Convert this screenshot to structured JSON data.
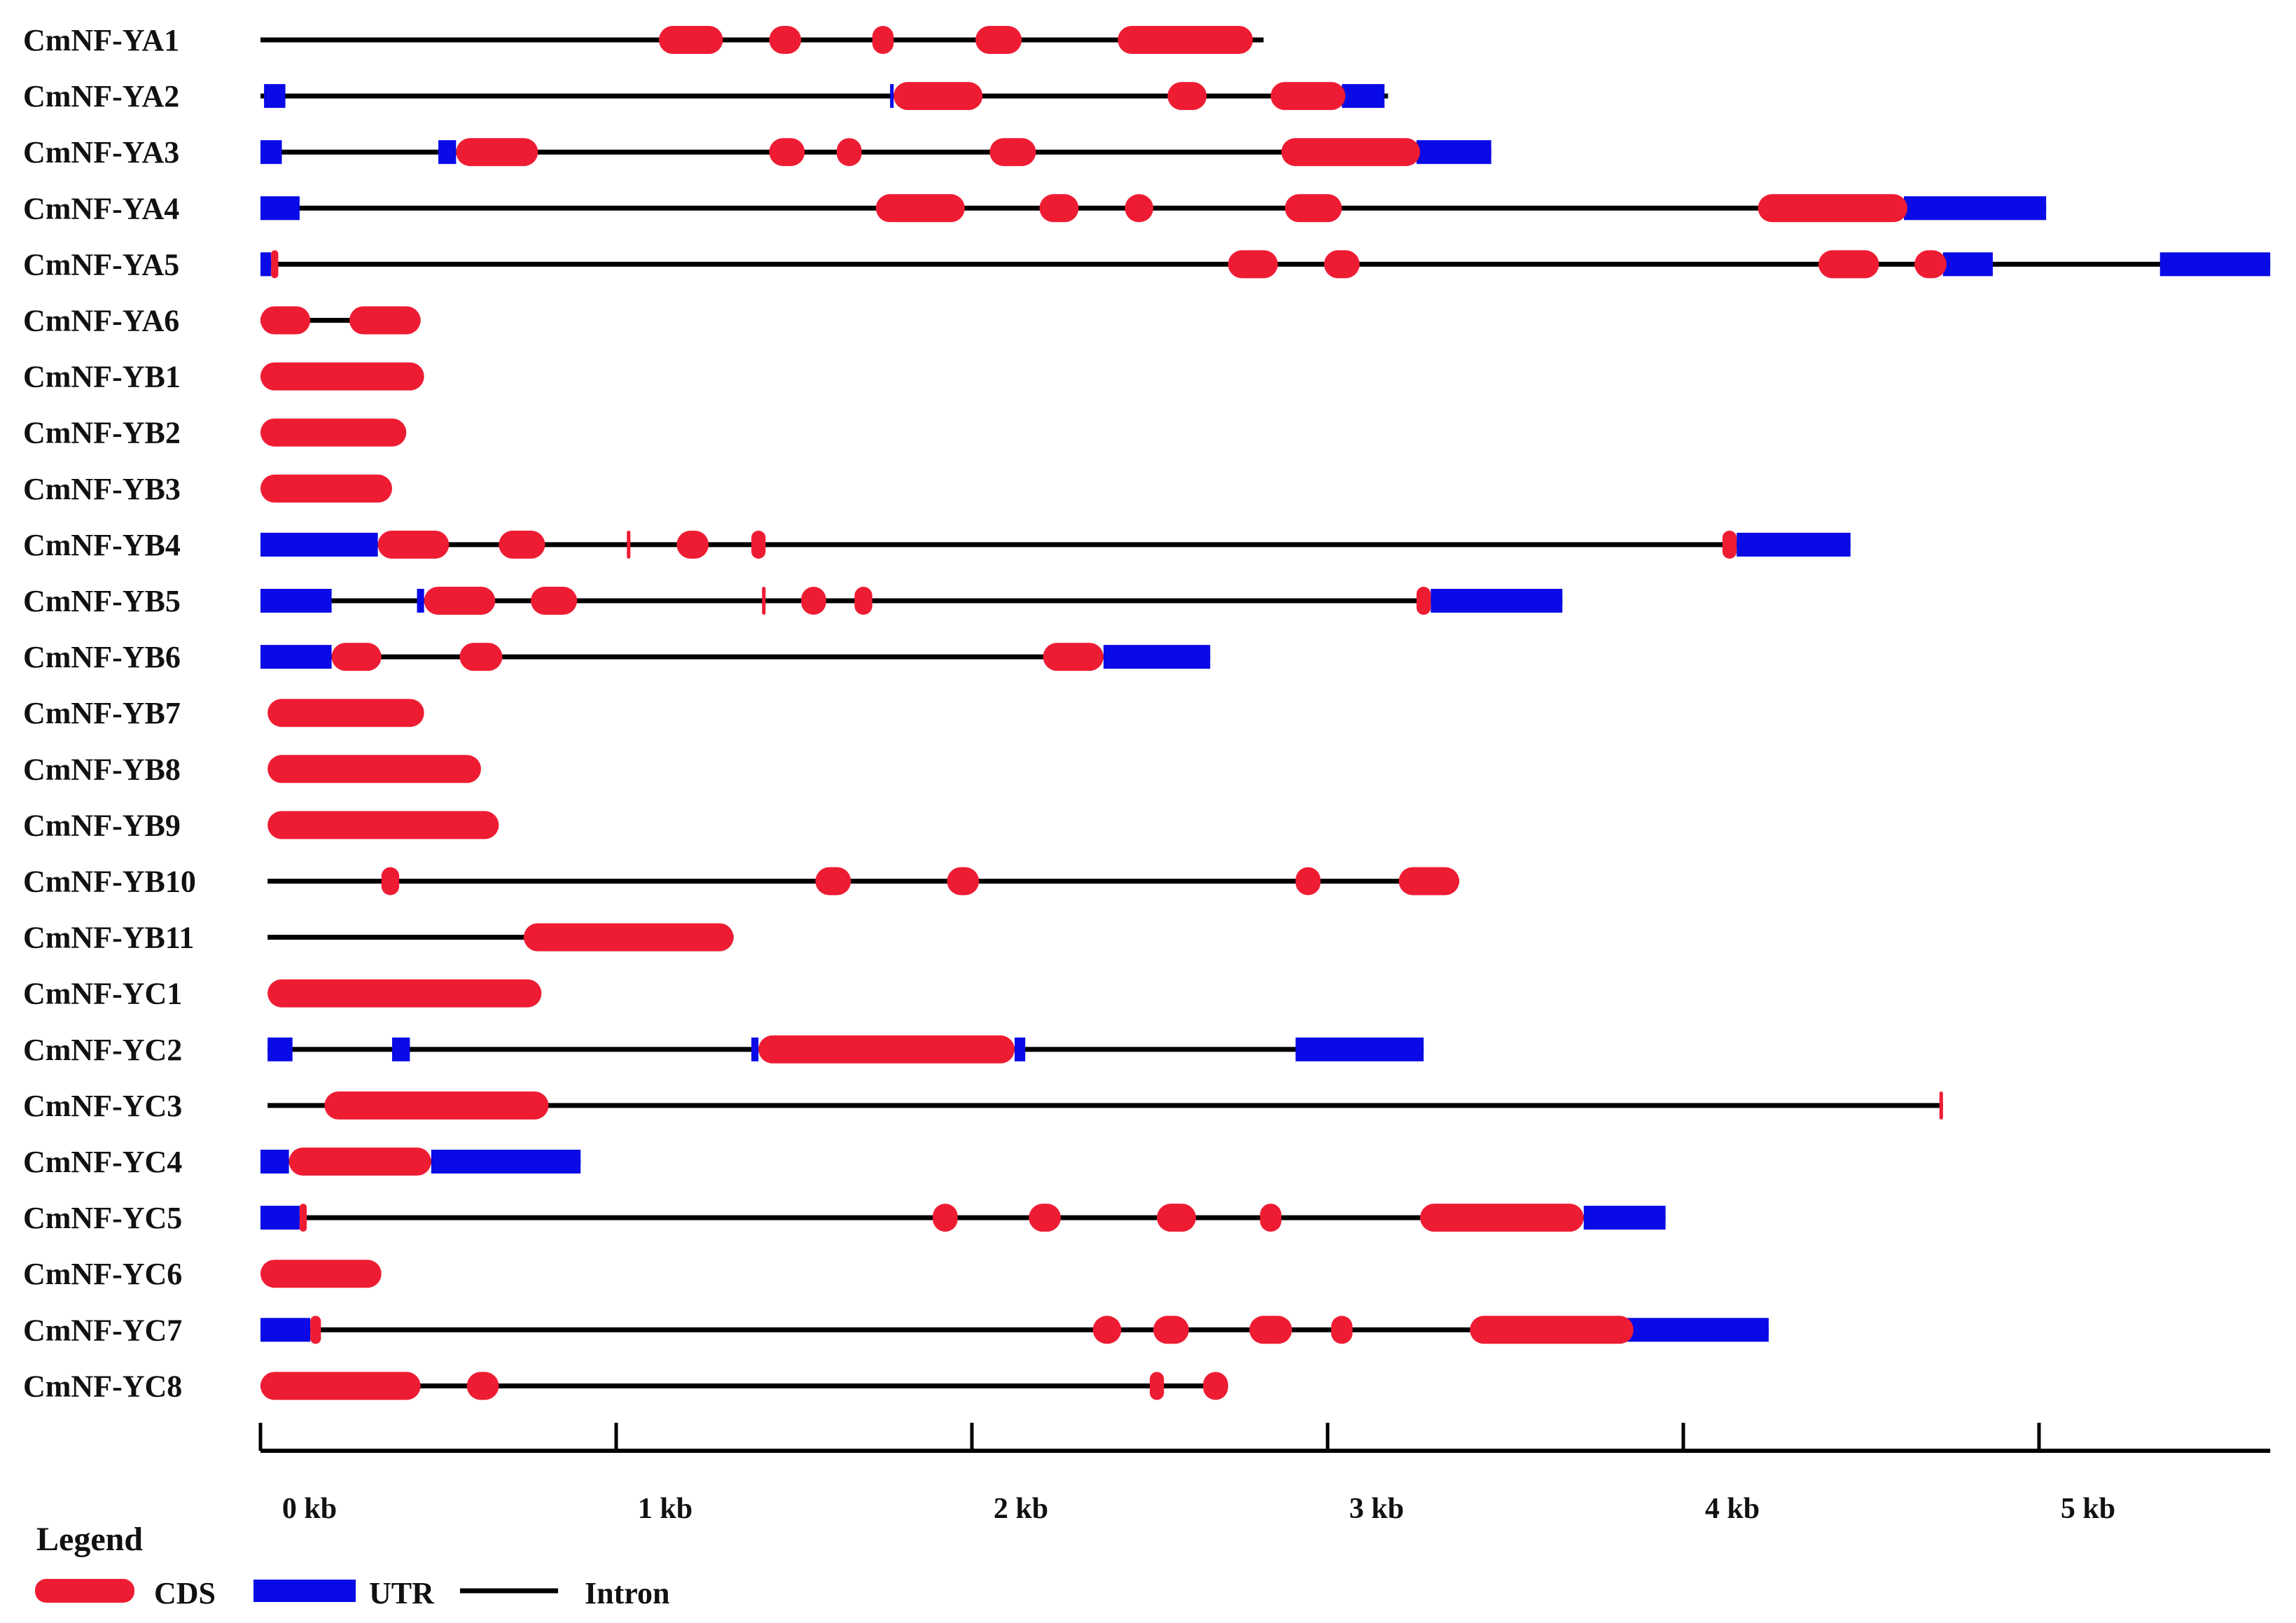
{
  "colors": {
    "cds": "#ee1c33",
    "utr": "#0a0ae6",
    "intron": "#000000",
    "text": "#111111"
  },
  "axis": {
    "unit": "kb",
    "max_kb": 5.65,
    "ticks": [
      {
        "value": 0,
        "label": "0 kb"
      },
      {
        "value": 1,
        "label": "1 kb"
      },
      {
        "value": 2,
        "label": "2 kb"
      },
      {
        "value": 3,
        "label": "3 kb"
      },
      {
        "value": 4,
        "label": "4 kb"
      },
      {
        "value": 5,
        "label": "5 kb"
      }
    ]
  },
  "legend": {
    "title": "Legend",
    "items": [
      {
        "type": "cds",
        "label": "CDS"
      },
      {
        "type": "utr",
        "label": "UTR"
      },
      {
        "type": "intron",
        "label": "Intron"
      }
    ]
  },
  "genes": [
    {
      "name": "CmNF-YA1",
      "intron": [
        0,
        2.82
      ],
      "utr": [],
      "cds": [
        [
          1.12,
          1.3
        ],
        [
          1.43,
          1.52
        ],
        [
          1.72,
          1.78
        ],
        [
          2.01,
          2.14
        ],
        [
          2.41,
          2.79
        ]
      ]
    },
    {
      "name": "CmNF-YA2",
      "intron": [
        0,
        3.17
      ],
      "utr": [
        [
          0.01,
          0.07
        ],
        [
          1.77,
          1.78
        ],
        [
          3.04,
          3.16
        ]
      ],
      "cds": [
        [
          1.78,
          2.03
        ],
        [
          2.55,
          2.66
        ],
        [
          2.84,
          3.05
        ]
      ]
    },
    {
      "name": "CmNF-YA3",
      "intron": [
        0,
        3.46
      ],
      "utr": [
        [
          0,
          0.06
        ],
        [
          0.5,
          0.55
        ],
        [
          3.25,
          3.46
        ]
      ],
      "cds": [
        [
          0.55,
          0.78
        ],
        [
          1.43,
          1.53
        ],
        [
          1.62,
          1.69
        ],
        [
          2.05,
          2.18
        ],
        [
          2.87,
          3.26
        ]
      ]
    },
    {
      "name": "CmNF-YA4",
      "intron": [
        0,
        5.02
      ],
      "utr": [
        [
          0,
          0.11
        ],
        [
          4.62,
          5.02
        ]
      ],
      "cds": [
        [
          1.73,
          1.98
        ],
        [
          2.19,
          2.3
        ],
        [
          2.43,
          2.51
        ],
        [
          2.88,
          3.04
        ],
        [
          4.21,
          4.63
        ]
      ]
    },
    {
      "name": "CmNF-YA5",
      "intron": [
        0,
        5.65
      ],
      "utr": [
        [
          0,
          0.03
        ],
        [
          4.73,
          4.87
        ],
        [
          5.34,
          5.65
        ]
      ],
      "cds": [
        [
          0.03,
          0.05
        ],
        [
          2.72,
          2.86
        ],
        [
          2.99,
          3.09
        ],
        [
          4.38,
          4.55
        ],
        [
          4.65,
          4.74
        ]
      ]
    },
    {
      "name": "CmNF-YA6",
      "intron": [
        0,
        0.45
      ],
      "utr": [],
      "cds": [
        [
          0,
          0.14
        ],
        [
          0.25,
          0.45
        ]
      ]
    },
    {
      "name": "CmNF-YB1",
      "intron": null,
      "utr": [],
      "cds": [
        [
          0,
          0.46
        ]
      ]
    },
    {
      "name": "CmNF-YB2",
      "intron": null,
      "utr": [],
      "cds": [
        [
          0,
          0.41
        ]
      ]
    },
    {
      "name": "CmNF-YB3",
      "intron": null,
      "utr": [],
      "cds": [
        [
          0,
          0.37
        ]
      ]
    },
    {
      "name": "CmNF-YB4",
      "intron": [
        0,
        4.47
      ],
      "utr": [
        [
          0,
          0.33
        ],
        [
          4.15,
          4.47
        ]
      ],
      "cds": [
        [
          0.33,
          0.53
        ],
        [
          0.67,
          0.8
        ],
        [
          1.03,
          1.04
        ],
        [
          1.17,
          1.26
        ],
        [
          1.38,
          1.42
        ],
        [
          4.11,
          4.15
        ]
      ]
    },
    {
      "name": "CmNF-YB5",
      "intron": [
        0,
        3.66
      ],
      "utr": [
        [
          0,
          0.2
        ],
        [
          0.44,
          0.46
        ],
        [
          3.29,
          3.66
        ]
      ],
      "cds": [
        [
          0.46,
          0.66
        ],
        [
          0.76,
          0.89
        ],
        [
          1.41,
          1.42
        ],
        [
          1.52,
          1.59
        ],
        [
          1.67,
          1.72
        ],
        [
          3.25,
          3.29
        ]
      ]
    },
    {
      "name": "CmNF-YB6",
      "intron": [
        0,
        2.67
      ],
      "utr": [
        [
          0,
          0.2
        ],
        [
          2.37,
          2.67
        ]
      ],
      "cds": [
        [
          0.2,
          0.34
        ],
        [
          0.56,
          0.68
        ],
        [
          2.2,
          2.37
        ]
      ]
    },
    {
      "name": "CmNF-YB7",
      "intron": null,
      "utr": [],
      "cds": [
        [
          0.02,
          0.46
        ]
      ]
    },
    {
      "name": "CmNF-YB8",
      "intron": null,
      "utr": [],
      "cds": [
        [
          0.02,
          0.62
        ]
      ]
    },
    {
      "name": "CmNF-YB9",
      "intron": null,
      "utr": [],
      "cds": [
        [
          0.02,
          0.67
        ]
      ]
    },
    {
      "name": "CmNF-YB10",
      "intron": [
        0.02,
        3.37
      ],
      "utr": [],
      "cds": [
        [
          0.34,
          0.39
        ],
        [
          1.56,
          1.66
        ],
        [
          1.93,
          2.02
        ],
        [
          2.91,
          2.98
        ],
        [
          3.2,
          3.37
        ]
      ]
    },
    {
      "name": "CmNF-YB11",
      "intron": [
        0.02,
        1.33
      ],
      "utr": [],
      "cds": [
        [
          0.74,
          1.33
        ]
      ]
    },
    {
      "name": "CmNF-YC1",
      "intron": null,
      "utr": [],
      "cds": [
        [
          0.02,
          0.79
        ]
      ]
    },
    {
      "name": "CmNF-YC2",
      "intron": [
        0.02,
        3.27
      ],
      "utr": [
        [
          0.02,
          0.09
        ],
        [
          0.37,
          0.42
        ],
        [
          1.38,
          1.4
        ],
        [
          2.12,
          2.15
        ],
        [
          2.91,
          3.27
        ]
      ],
      "cds": [
        [
          1.4,
          2.12
        ]
      ]
    },
    {
      "name": "CmNF-YC3",
      "intron": [
        0.02,
        4.73
      ],
      "utr": [],
      "cds": [
        [
          0.18,
          0.81
        ],
        [
          4.72,
          4.73
        ]
      ]
    },
    {
      "name": "CmNF-YC4",
      "intron": [
        0,
        0.9
      ],
      "utr": [
        [
          0,
          0.08
        ],
        [
          0.48,
          0.9
        ]
      ],
      "cds": [
        [
          0.08,
          0.48
        ]
      ]
    },
    {
      "name": "CmNF-YC5",
      "intron": [
        0,
        3.95
      ],
      "utr": [
        [
          0,
          0.11
        ],
        [
          3.72,
          3.95
        ]
      ],
      "cds": [
        [
          0.11,
          0.13
        ],
        [
          1.89,
          1.96
        ],
        [
          2.16,
          2.25
        ],
        [
          2.52,
          2.63
        ],
        [
          2.81,
          2.87
        ],
        [
          3.26,
          3.72
        ]
      ]
    },
    {
      "name": "CmNF-YC6",
      "intron": null,
      "utr": [],
      "cds": [
        [
          0,
          0.34
        ]
      ]
    },
    {
      "name": "CmNF-YC7",
      "intron": [
        0,
        4.24
      ],
      "utr": [
        [
          0,
          0.14
        ],
        [
          3.84,
          4.24
        ]
      ],
      "cds": [
        [
          0.14,
          0.17
        ],
        [
          2.34,
          2.42
        ],
        [
          2.51,
          2.61
        ],
        [
          2.78,
          2.9
        ],
        [
          3.01,
          3.07
        ],
        [
          3.4,
          3.86
        ]
      ]
    },
    {
      "name": "CmNF-YC8",
      "intron": [
        0,
        2.72
      ],
      "utr": [],
      "cds": [
        [
          0,
          0.45
        ],
        [
          0.58,
          0.67
        ],
        [
          2.5,
          2.54
        ],
        [
          2.65,
          2.72
        ]
      ]
    }
  ]
}
